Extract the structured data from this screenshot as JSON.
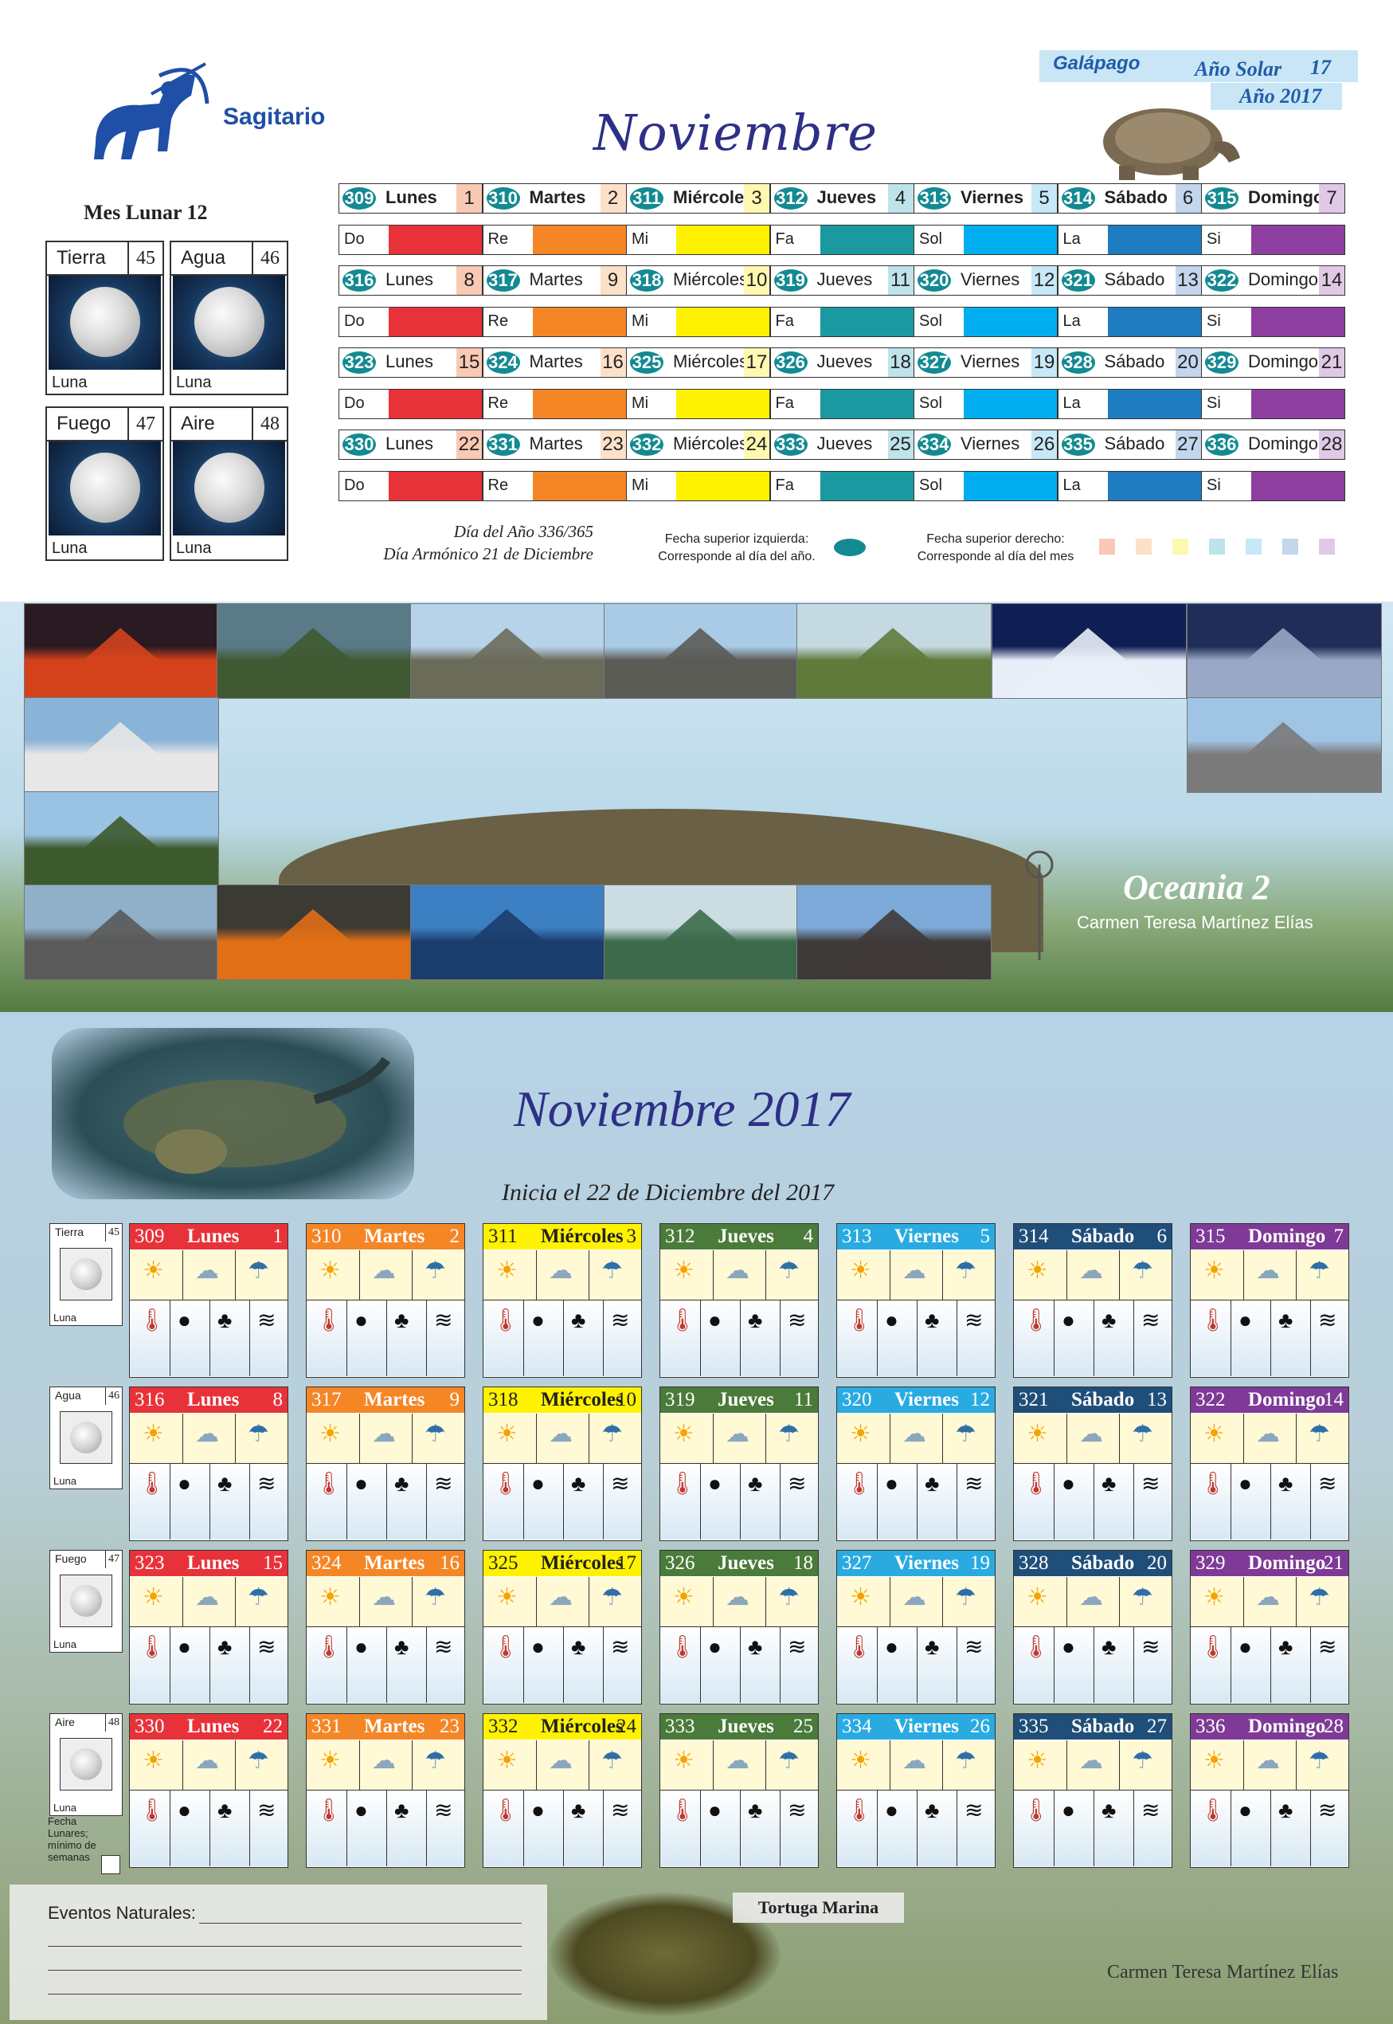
{
  "header": {
    "sign": "Sagitario",
    "lunar_month": "Mes Lunar 12",
    "month": "Noviembre",
    "galapago": "Galápago",
    "solar_label": "Año Solar",
    "solar_number": "17",
    "year_label": "Año 2017"
  },
  "elements": [
    {
      "name": "Tierra",
      "num": "45",
      "foot": "Luna"
    },
    {
      "name": "Agua",
      "num": "46",
      "foot": "Luna"
    },
    {
      "name": "Fuego",
      "num": "47",
      "foot": "Luna"
    },
    {
      "name": "Aire",
      "num": "48",
      "foot": "Luna"
    }
  ],
  "notes": [
    "Do",
    "Re",
    "Mi",
    "Fa",
    "Sol",
    "La",
    "Si"
  ],
  "note_colors": [
    "#e8323a",
    "#f58626",
    "#fff200",
    "#1a9aa0",
    "#00aeef",
    "#1f7cc0",
    "#8e3fa0"
  ],
  "weekday_colors": [
    "#e8323a",
    "#f58626",
    "#fff200",
    "#4a7b3a",
    "#29abe2",
    "#1f4e79",
    "#7e3a96"
  ],
  "weekday_num_colors": [
    "#f9c9b4",
    "#fde0c8",
    "#fff8b0",
    "#bfe3ea",
    "#c7e8f7",
    "#c4d6ee",
    "#dfc9e6"
  ],
  "weeks": [
    [
      {
        "yday": "309",
        "name": "Lunes",
        "mday": "1"
      },
      {
        "yday": "310",
        "name": "Martes",
        "mday": "2"
      },
      {
        "yday": "311",
        "name": "Miércoles",
        "mday": "3"
      },
      {
        "yday": "312",
        "name": "Jueves",
        "mday": "4"
      },
      {
        "yday": "313",
        "name": "Viernes",
        "mday": "5"
      },
      {
        "yday": "314",
        "name": "Sábado",
        "mday": "6"
      },
      {
        "yday": "315",
        "name": "Domingo",
        "mday": "7"
      }
    ],
    [
      {
        "yday": "316",
        "name": "Lunes",
        "mday": "8"
      },
      {
        "yday": "317",
        "name": "Martes",
        "mday": "9"
      },
      {
        "yday": "318",
        "name": "Miércoles",
        "mday": "10"
      },
      {
        "yday": "319",
        "name": "Jueves",
        "mday": "11"
      },
      {
        "yday": "320",
        "name": "Viernes",
        "mday": "12"
      },
      {
        "yday": "321",
        "name": "Sábado",
        "mday": "13"
      },
      {
        "yday": "322",
        "name": "Domingo",
        "mday": "14"
      }
    ],
    [
      {
        "yday": "323",
        "name": "Lunes",
        "mday": "15"
      },
      {
        "yday": "324",
        "name": "Martes",
        "mday": "16"
      },
      {
        "yday": "325",
        "name": "Miércoles",
        "mday": "17"
      },
      {
        "yday": "326",
        "name": "Jueves",
        "mday": "18"
      },
      {
        "yday": "327",
        "name": "Viernes",
        "mday": "19"
      },
      {
        "yday": "328",
        "name": "Sábado",
        "mday": "20"
      },
      {
        "yday": "329",
        "name": "Domingo",
        "mday": "21"
      }
    ],
    [
      {
        "yday": "330",
        "name": "Lunes",
        "mday": "22"
      },
      {
        "yday": "331",
        "name": "Martes",
        "mday": "23"
      },
      {
        "yday": "332",
        "name": "Miércoles",
        "mday": "24"
      },
      {
        "yday": "333",
        "name": "Jueves",
        "mday": "25"
      },
      {
        "yday": "334",
        "name": "Viernes",
        "mday": "26"
      },
      {
        "yday": "335",
        "name": "Sábado",
        "mday": "27"
      },
      {
        "yday": "336",
        "name": "Domingo",
        "mday": "28"
      }
    ]
  ],
  "footer_top": {
    "line1": "Día del Año 336/365",
    "line2": "Día Armónico 21 de Diciembre",
    "legend_left_1": "Fecha superior izquierda:",
    "legend_left_2": "Corresponde al día del año.",
    "legend_right_1": "Fecha superior derecho:",
    "legend_right_2": "Corresponde al día del mes"
  },
  "banner": {
    "title": "Oceania 2",
    "author": "Carmen Teresa Martínez Elías"
  },
  "bottom": {
    "title": "Noviembre 2017",
    "subtitle": "Inicia el 22 de Diciembre del 2017",
    "side_note": "Fecha Lunares; mínimo de semanas",
    "events_label": "Eventos Naturales:",
    "turtle_label": "Tortuga Marina",
    "author": "Carmen Teresa Martínez Elías"
  },
  "icons": {
    "sky": [
      "sun-icon",
      "cloud-icon",
      "rain-icon"
    ],
    "ground": [
      "thermometer-icon",
      "moon-phase-icon",
      "palm-tree-icon",
      "wind-icon"
    ]
  }
}
